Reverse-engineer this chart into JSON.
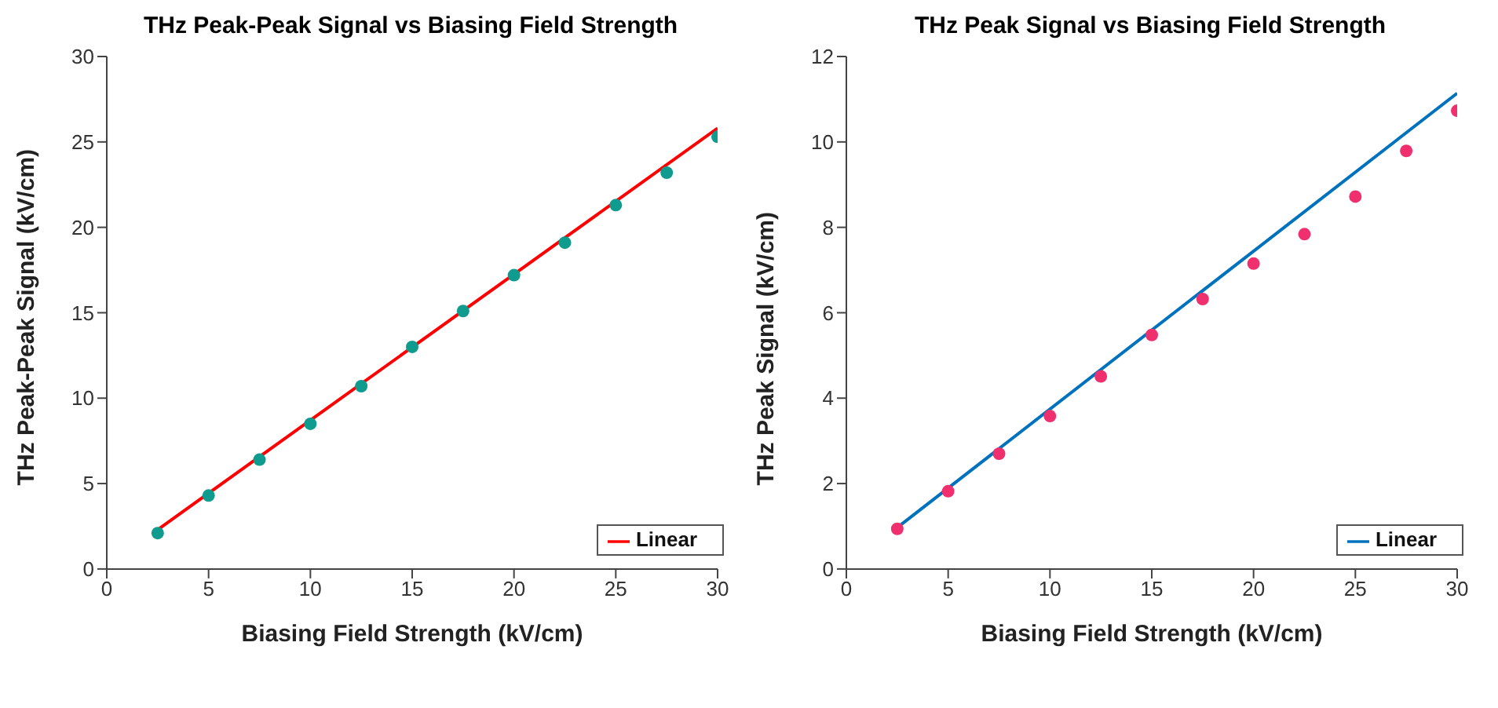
{
  "chart_data": [
    {
      "type": "scatter",
      "title": "THz Peak-Peak Signal vs Biasing Field Strength",
      "xlabel": "Biasing Field Strength (kV/cm)",
      "ylabel": "THz Peak-Peak Signal (kV/cm)",
      "xlim": [
        0,
        30
      ],
      "xticks": [
        0,
        5,
        10,
        15,
        20,
        25,
        30
      ],
      "ylim": [
        0,
        30
      ],
      "yticks": [
        0,
        5,
        10,
        15,
        20,
        25,
        30
      ],
      "grid": false,
      "legend": "bottom right",
      "series": [
        {
          "type": "scatter",
          "color": "#0f9b8e",
          "marker": "circle",
          "x": [
            2.5,
            5,
            7.5,
            10,
            12.5,
            15,
            17.5,
            20,
            22.5,
            25,
            27.5,
            30
          ],
          "values": [
            2.1,
            4.3,
            6.4,
            8.5,
            10.7,
            13.0,
            15.1,
            17.2,
            19.1,
            21.3,
            23.2,
            25.3
          ]
        },
        {
          "type": "line",
          "name": "Linear",
          "color": "#ff0000",
          "line_style": "solid",
          "x": [
            2.5,
            30
          ],
          "values": [
            2.3,
            25.8
          ]
        }
      ]
    },
    {
      "type": "scatter",
      "title": "THz Peak Signal vs Biasing Field Strength",
      "xlabel": "Biasing Field Strength (kV/cm)",
      "ylabel": "THz Peak Signal (kV/cm)",
      "xlim": [
        0,
        30
      ],
      "xticks": [
        0,
        5,
        10,
        15,
        20,
        25,
        30
      ],
      "ylim": [
        0,
        12
      ],
      "yticks": [
        0,
        2,
        4,
        6,
        8,
        10,
        12
      ],
      "grid": false,
      "legend": "bottom right",
      "series": [
        {
          "type": "scatter",
          "color": "#f0306e",
          "marker": "circle",
          "x": [
            2.5,
            5,
            7.5,
            10,
            12.5,
            15,
            17.5,
            20,
            22.5,
            25,
            27.5,
            30
          ],
          "values": [
            0.94,
            1.82,
            2.7,
            3.58,
            4.51,
            5.48,
            6.32,
            7.15,
            7.84,
            8.72,
            9.79,
            10.73
          ]
        },
        {
          "type": "line",
          "name": "Linear",
          "color": "#0072bd",
          "line_style": "solid",
          "x": [
            2.5,
            30
          ],
          "values": [
            0.97,
            11.14
          ]
        }
      ]
    }
  ]
}
